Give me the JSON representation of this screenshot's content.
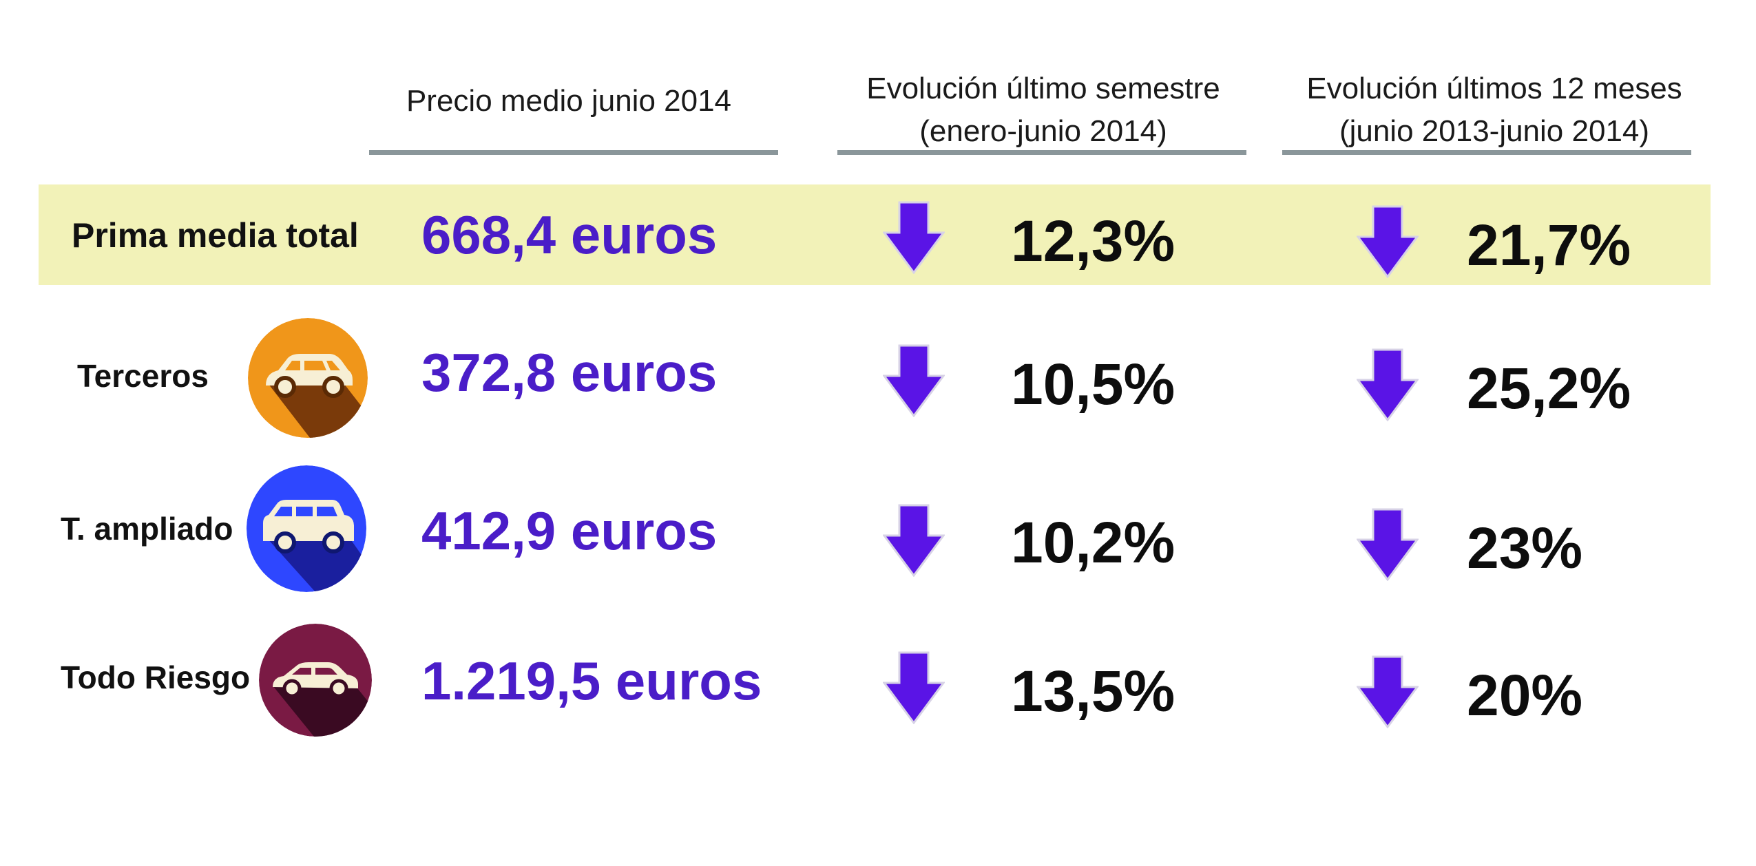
{
  "headers": {
    "price": "Precio medio junio 2014",
    "semester_line1": "Evolución último semestre",
    "semester_line2": "(enero-junio 2014)",
    "year_line1": "Evolución últimos 12 meses",
    "year_line2": "(junio 2013-junio 2014)"
  },
  "colors": {
    "highlight_bg": "#f2f2b8",
    "price_text": "#4a1dc8",
    "arrow_fill": "#5a14e6",
    "divider": "#8a969a",
    "terceros_icon": "#f0961a",
    "ampliado_icon": "#2e47ff",
    "todo_riesgo_icon": "#7a1a44"
  },
  "rows": [
    {
      "label": "Prima media total",
      "price": "668,4 euros",
      "semester": "12,3%",
      "year": "21,7%",
      "icon": ""
    },
    {
      "label": "Terceros",
      "price": "372,8 euros",
      "semester": "10,5%",
      "year": "25,2%",
      "icon": "hatchback-car-icon"
    },
    {
      "label": "T. ampliado",
      "price": "412,9 euros",
      "semester": "10,2%",
      "year": "23%",
      "icon": "suv-car-icon"
    },
    {
      "label": "Todo Riesgo",
      "price": "1.219,5 euros",
      "semester": "13,5%",
      "year": "20%",
      "icon": "sedan-car-icon"
    }
  ]
}
